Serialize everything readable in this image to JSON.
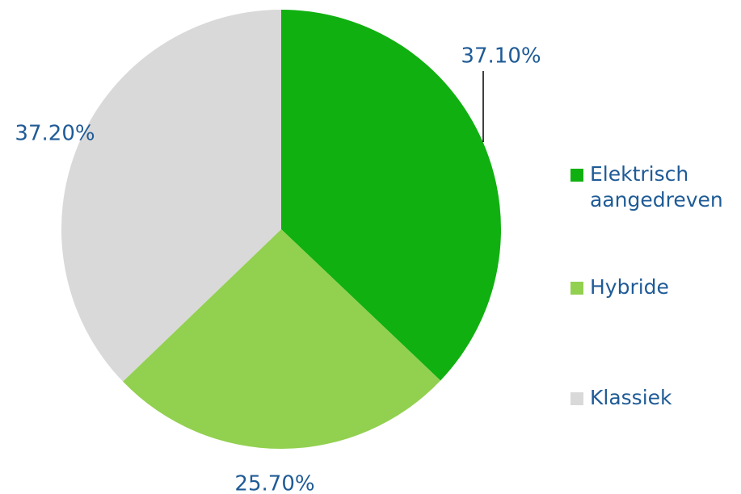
{
  "chart_data": {
    "type": "pie",
    "categories": [
      "Elektrisch aangedreven",
      "Hybride",
      "Klassiek"
    ],
    "values": [
      37.1,
      25.7,
      37.2
    ],
    "value_labels": [
      "37.10%",
      "25.70%",
      "37.20%"
    ],
    "colors": [
      "#10b010",
      "#92d050",
      "#d9d9d9"
    ],
    "legend": "right"
  }
}
